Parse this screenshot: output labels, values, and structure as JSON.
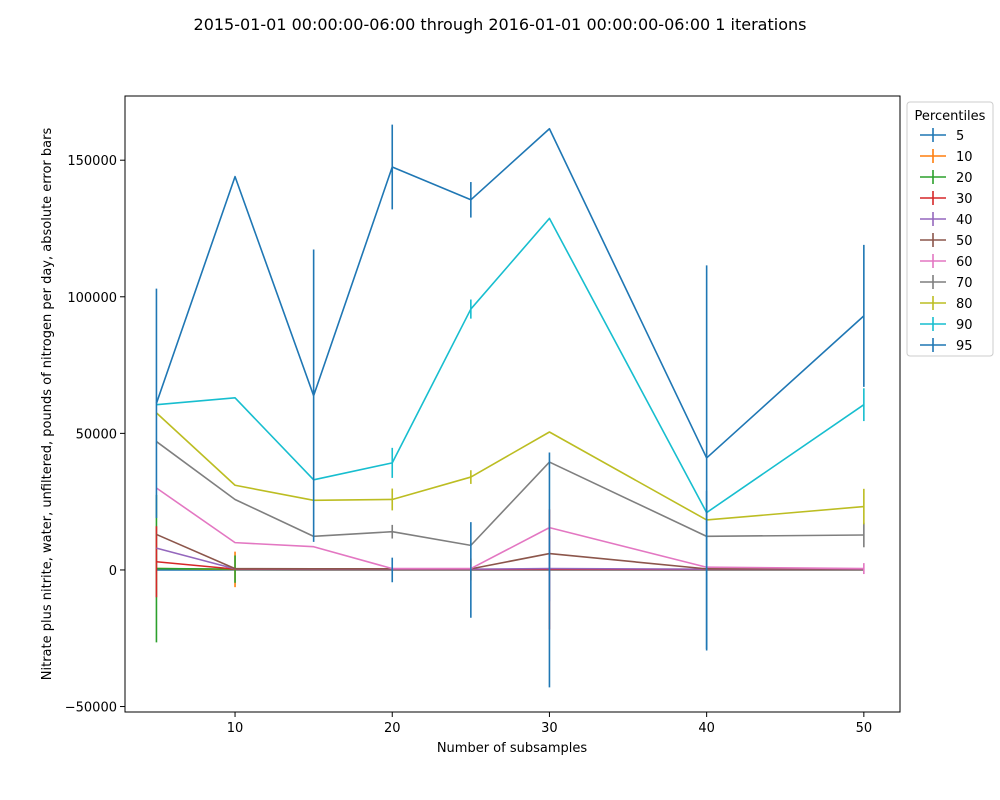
{
  "chart_data": {
    "type": "line",
    "title": "2015-01-01 00:00:00-06:00 through 2016-01-01 00:00:00-06:00 1 iterations",
    "xlabel": "Number of subsamples",
    "ylabel": "Nitrate plus nitrite, water, unfiltered, pounds of nitrogen per day, absolute error bars",
    "xlim": [
      3,
      52.3
    ],
    "ylim": [
      -52000,
      173500
    ],
    "xticks": [
      10,
      20,
      30,
      40,
      50
    ],
    "yticks": [
      -50000,
      0,
      50000,
      100000,
      150000
    ],
    "ytick_labels": [
      "−50000",
      "0",
      "50000",
      "100000",
      "150000"
    ],
    "grid": false,
    "legend": {
      "title": "Percentiles",
      "placement": "outside-upper-right"
    },
    "x": [
      5,
      10,
      15,
      20,
      25,
      30,
      40,
      50
    ],
    "series": [
      {
        "name": "5",
        "color": "#1f77b4",
        "values": [
          0,
          0,
          0,
          0,
          0,
          0,
          0,
          0
        ],
        "err": [
          0,
          0,
          0,
          0,
          0,
          0,
          0,
          0
        ]
      },
      {
        "name": "10",
        "color": "#ff7f0e",
        "values": [
          500,
          200,
          200,
          200,
          200,
          200,
          200,
          200
        ],
        "err": [
          0,
          6500,
          0,
          0,
          4000,
          0,
          0,
          0
        ]
      },
      {
        "name": "20",
        "color": "#2ca02c",
        "values": [
          500,
          300,
          200,
          200,
          200,
          200,
          200,
          200
        ],
        "err": [
          27000,
          5000,
          0,
          0,
          0,
          0,
          0,
          0
        ]
      },
      {
        "name": "30",
        "color": "#d62728",
        "values": [
          3000,
          300,
          200,
          200,
          200,
          200,
          200,
          200
        ],
        "err": [
          13000,
          0,
          0,
          0,
          0,
          22000,
          0,
          0
        ]
      },
      {
        "name": "40",
        "color": "#9467bd",
        "values": [
          8000,
          400,
          300,
          300,
          300,
          500,
          300,
          300
        ],
        "err": [
          0,
          0,
          0,
          0,
          0,
          12000,
          0,
          0
        ]
      },
      {
        "name": "50",
        "color": "#8c564b",
        "values": [
          13000,
          500,
          400,
          400,
          400,
          6000,
          400,
          400
        ],
        "err": [
          0,
          0,
          0,
          0,
          0,
          0,
          0,
          0
        ]
      },
      {
        "name": "60",
        "color": "#e377c2",
        "values": [
          30000,
          10000,
          8500,
          500,
          500,
          15500,
          1000,
          500
        ],
        "err": [
          0,
          0,
          0,
          0,
          0,
          0,
          0,
          2000
        ]
      },
      {
        "name": "70",
        "color": "#7f7f7f",
        "values": [
          47000,
          25800,
          12300,
          14000,
          9000,
          39500,
          12300,
          12800
        ],
        "err": [
          0,
          0,
          0,
          2500,
          0,
          0,
          0,
          4500
        ]
      },
      {
        "name": "80",
        "color": "#bcbd22",
        "values": [
          57500,
          31000,
          25500,
          25800,
          34000,
          50500,
          18300,
          23200
        ],
        "err": [
          0,
          0,
          0,
          4000,
          2500,
          0,
          0,
          6500
        ]
      },
      {
        "name": "90",
        "color": "#17becf",
        "values": [
          60500,
          63000,
          33000,
          39200,
          95500,
          128700,
          21000,
          60500
        ],
        "err": [
          0,
          0,
          0,
          5500,
          3500,
          0,
          0,
          6000
        ]
      },
      {
        "name": "95",
        "color": "#1f77b4",
        "values": [
          61000,
          144000,
          63800,
          147500,
          135500,
          161500,
          41000,
          93000
        ],
        "err": [
          42000,
          0,
          53500,
          15500,
          6500,
          0,
          70500,
          26000
        ]
      }
    ],
    "extra_error_bars": [
      {
        "series": "5",
        "x": 20,
        "y": 0,
        "err": 4500
      },
      {
        "series": "5",
        "x": 25,
        "y": 0,
        "err": 17500
      },
      {
        "series": "5",
        "x": 30,
        "y": 0,
        "err": 43000
      },
      {
        "series": "5",
        "x": 40,
        "y": 0,
        "err": 29000
      }
    ]
  }
}
